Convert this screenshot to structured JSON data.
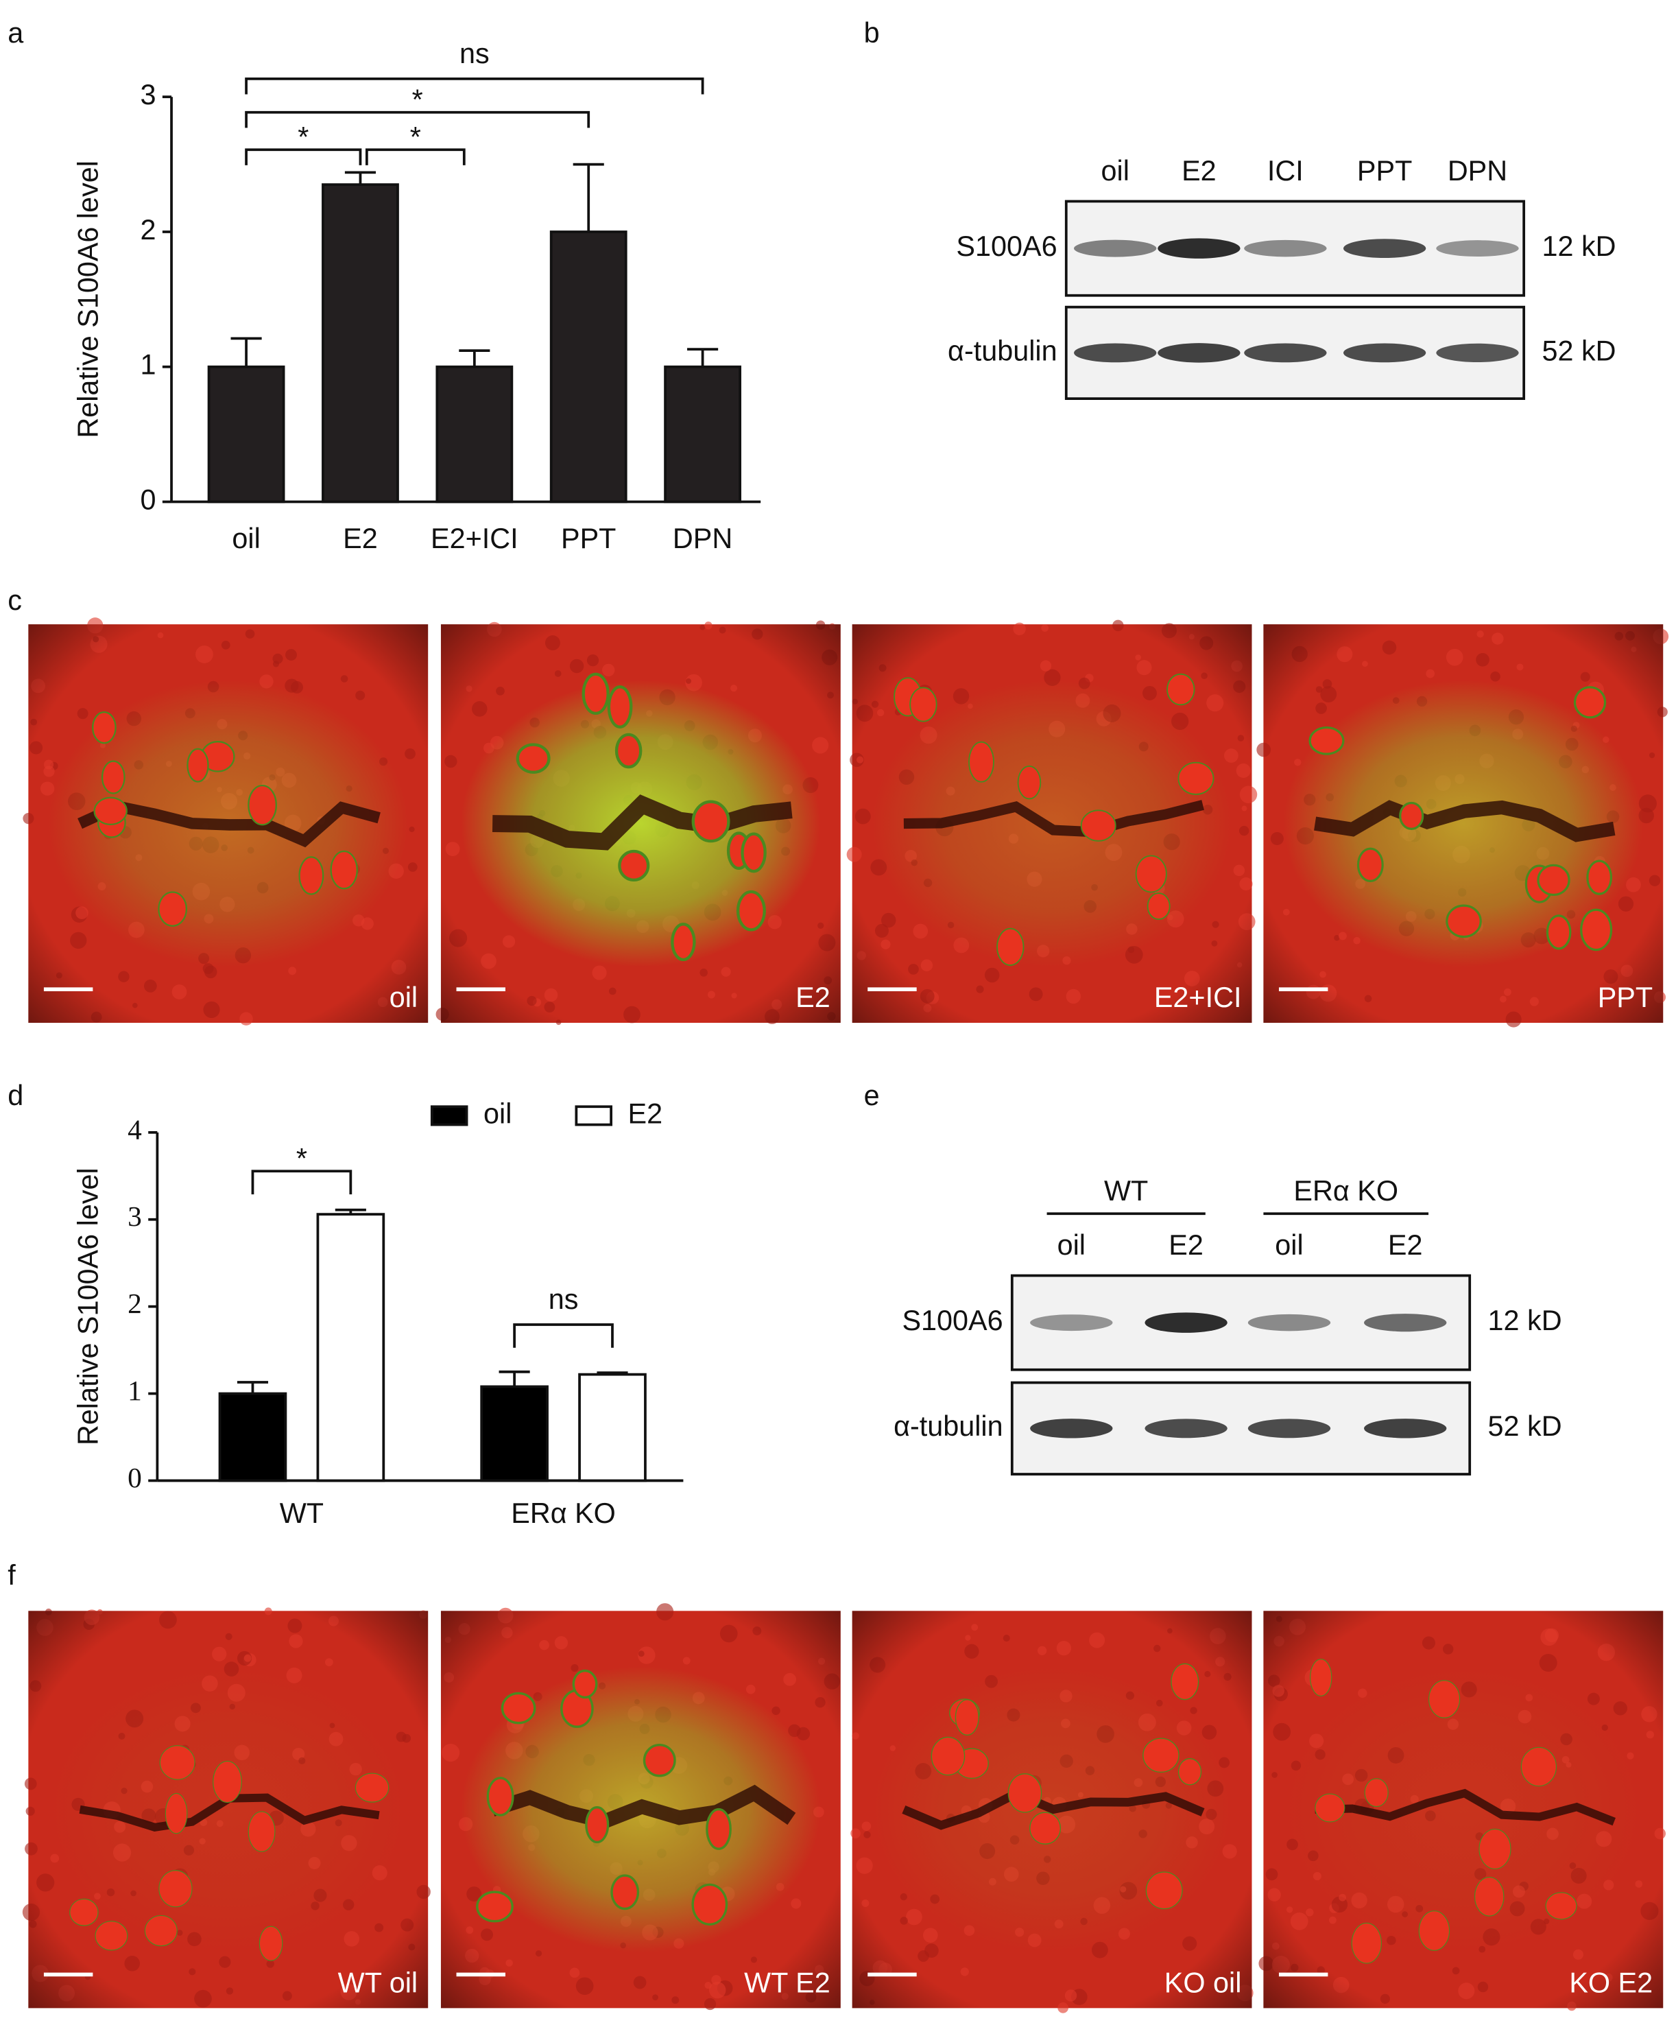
{
  "panel_labels": [
    "a",
    "b",
    "c",
    "d",
    "e",
    "f"
  ],
  "chart_data": [
    {
      "type": "bar",
      "ylabel": "Relative S100A6 level",
      "categories": [
        "oil",
        "E2",
        "E2+ICI",
        "PPT",
        "DPN"
      ],
      "values": [
        1.0,
        2.35,
        1.0,
        2.0,
        1.0
      ],
      "errors": [
        0.21,
        0.09,
        0.12,
        0.5,
        0.13
      ],
      "color": "#231f20",
      "ylim": [
        0,
        3
      ],
      "yticks": [
        0,
        1,
        2,
        3
      ],
      "significance": [
        {
          "pair": [
            "oil",
            "DPN"
          ],
          "label": "ns"
        },
        {
          "pair": [
            "oil",
            "PPT"
          ],
          "label": "*"
        },
        {
          "pair": [
            "oil",
            "E2"
          ],
          "label": "*"
        },
        {
          "pair": [
            "E2",
            "E2+ICI"
          ],
          "label": "*"
        }
      ]
    },
    {
      "type": "grouped_bar",
      "ylabel": "Relative S100A6 level",
      "categories": [
        "WT",
        "ERα KO"
      ],
      "series": [
        {
          "name": "oil",
          "color": "#000000",
          "values": [
            1.0,
            1.08
          ],
          "errors": [
            0.13,
            0.17
          ]
        },
        {
          "name": "E2",
          "color": "#ffffff",
          "values": [
            3.06,
            1.22
          ],
          "errors": [
            0.05,
            0.02
          ]
        }
      ],
      "ylim": [
        0,
        4
      ],
      "yticks": [
        0,
        1,
        2,
        3,
        4
      ],
      "significance": [
        {
          "category": "WT",
          "label": "*"
        },
        {
          "category": "ERα KO",
          "label": "ns"
        }
      ]
    }
  ],
  "blot_b": {
    "lanes": [
      "oil",
      "E2",
      "ICI",
      "PPT",
      "DPN"
    ],
    "rows": [
      {
        "protein": "S100A6",
        "size": "12 kD"
      },
      {
        "protein": "α-tubulin",
        "size": "52 kD"
      }
    ]
  },
  "blot_e": {
    "groups": [
      "WT",
      "ERα KO"
    ],
    "lanes": [
      "oil",
      "E2",
      "oil",
      "E2"
    ],
    "rows": [
      {
        "protein": "S100A6",
        "size": "12 kD"
      },
      {
        "protein": "α-tubulin",
        "size": "52 kD"
      }
    ]
  },
  "images_c": [
    "oil",
    "E2",
    "E2+ICI",
    "PPT"
  ],
  "images_f": [
    "WT oil",
    "WT E2",
    "KO oil",
    "KO E2"
  ]
}
